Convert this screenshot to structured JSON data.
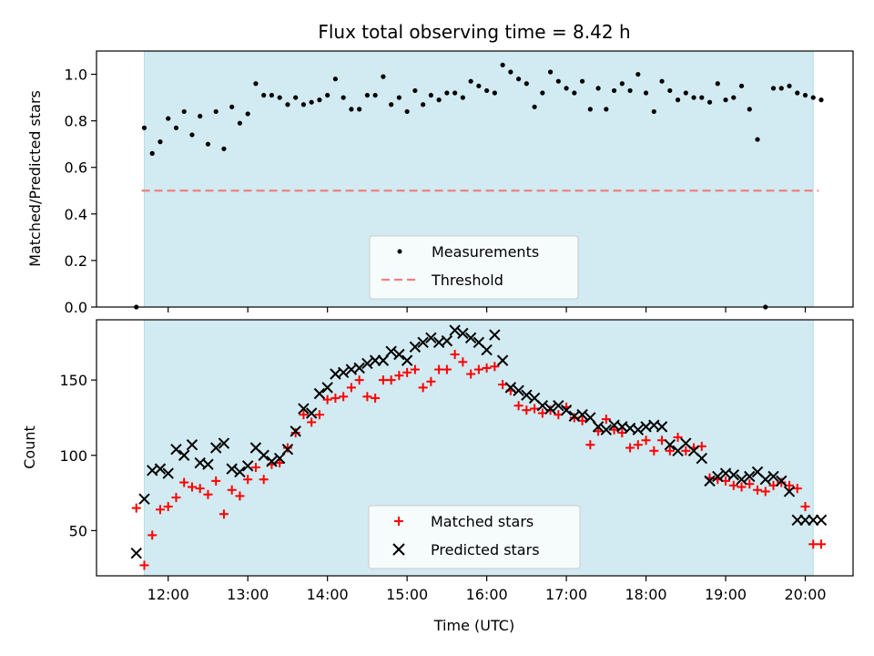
{
  "title": "Flux total observing time = 8.42 h",
  "colors": {
    "shade": "#add8e6",
    "threshold": "#f08080",
    "matched": "#ff0000",
    "predicted": "#000000",
    "measure": "#000000"
  },
  "chart_data": [
    {
      "type": "scatter",
      "ylabel": "Matched/Predicted stars",
      "ylim": [
        0.0,
        1.1
      ],
      "yticks": [
        0.0,
        0.2,
        0.4,
        0.6,
        0.8,
        1.0
      ],
      "ytick_labels": [
        "0.0",
        "0.2",
        "0.4",
        "0.6",
        "0.8",
        "1.0"
      ],
      "shaded_span": [
        "11:42",
        "20:06"
      ],
      "threshold": 0.5,
      "threshold_range": [
        "11:40",
        "20:10"
      ],
      "legend_position": "lower center",
      "series": [
        {
          "name": "Measurements",
          "marker": "dot",
          "x": [
            "11:36",
            "11:42",
            "11:48",
            "11:54",
            "12:00",
            "12:06",
            "12:12",
            "12:18",
            "12:24",
            "12:30",
            "12:36",
            "12:42",
            "12:48",
            "12:54",
            "13:00",
            "13:06",
            "13:12",
            "13:18",
            "13:24",
            "13:30",
            "13:36",
            "13:42",
            "13:48",
            "13:54",
            "14:00",
            "14:06",
            "14:12",
            "14:18",
            "14:24",
            "14:30",
            "14:36",
            "14:42",
            "14:48",
            "14:54",
            "15:00",
            "15:06",
            "15:12",
            "15:18",
            "15:24",
            "15:30",
            "15:36",
            "15:42",
            "15:48",
            "15:54",
            "16:00",
            "16:06",
            "16:12",
            "16:18",
            "16:24",
            "16:30",
            "16:36",
            "16:42",
            "16:48",
            "16:54",
            "17:00",
            "17:06",
            "17:12",
            "17:18",
            "17:24",
            "17:30",
            "17:36",
            "17:42",
            "17:48",
            "17:54",
            "18:00",
            "18:06",
            "18:12",
            "18:18",
            "18:24",
            "18:30",
            "18:36",
            "18:42",
            "18:48",
            "18:54",
            "19:00",
            "19:06",
            "19:12",
            "19:18",
            "19:24",
            "19:30",
            "19:36",
            "19:42",
            "19:48",
            "19:54",
            "20:00",
            "20:06",
            "20:12"
          ],
          "y": [
            0.0,
            0.77,
            0.66,
            0.71,
            0.81,
            0.77,
            0.84,
            0.74,
            0.82,
            0.7,
            0.84,
            0.68,
            0.86,
            0.79,
            0.83,
            0.96,
            0.91,
            0.91,
            0.9,
            0.87,
            0.9,
            0.87,
            0.88,
            0.89,
            0.91,
            0.98,
            0.9,
            0.85,
            0.85,
            0.91,
            0.91,
            0.99,
            0.87,
            0.9,
            0.84,
            0.93,
            0.87,
            0.91,
            0.89,
            0.92,
            0.92,
            0.9,
            0.97,
            0.95,
            0.93,
            0.92,
            1.04,
            1.01,
            0.98,
            0.96,
            0.86,
            0.92,
            1.01,
            0.97,
            0.94,
            0.92,
            0.97,
            0.85,
            0.94,
            0.85,
            0.93,
            0.96,
            0.93,
            1.0,
            0.92,
            0.84,
            0.97,
            0.93,
            0.89,
            0.92,
            0.9,
            0.9,
            0.88,
            0.96,
            0.89,
            0.9,
            0.95,
            0.85,
            0.72,
            0.0,
            0.94,
            0.94,
            0.95,
            0.92,
            0.91,
            0.9,
            0.89
          ]
        },
        {
          "name": "Threshold",
          "marker": "dashed-line"
        }
      ]
    },
    {
      "type": "scatter",
      "xlabel": "Time (UTC)",
      "ylabel": "Count",
      "ylim": [
        20,
        190
      ],
      "yticks": [
        50,
        100,
        150
      ],
      "ytick_labels": [
        "50",
        "100",
        "150"
      ],
      "xlim": [
        "11:06",
        "20:36"
      ],
      "xticks": [
        "12:00",
        "13:00",
        "14:00",
        "15:00",
        "16:00",
        "17:00",
        "18:00",
        "19:00",
        "20:00"
      ],
      "xtick_labels": [
        "12:00",
        "13:00",
        "14:00",
        "15:00",
        "16:00",
        "17:00",
        "18:00",
        "19:00",
        "20:00"
      ],
      "shaded_span": [
        "11:42",
        "20:06"
      ],
      "legend_position": "lower center",
      "series": [
        {
          "name": "Matched stars",
          "marker": "plus",
          "x": [
            "11:36",
            "11:42",
            "11:48",
            "11:54",
            "12:00",
            "12:06",
            "12:12",
            "12:18",
            "12:24",
            "12:30",
            "12:36",
            "12:42",
            "12:48",
            "12:54",
            "13:00",
            "13:06",
            "13:12",
            "13:18",
            "13:24",
            "13:30",
            "13:36",
            "13:42",
            "13:48",
            "13:54",
            "14:00",
            "14:06",
            "14:12",
            "14:18",
            "14:24",
            "14:30",
            "14:36",
            "14:42",
            "14:48",
            "14:54",
            "15:00",
            "15:06",
            "15:12",
            "15:18",
            "15:24",
            "15:30",
            "15:36",
            "15:42",
            "15:48",
            "15:54",
            "16:00",
            "16:06",
            "16:12",
            "16:18",
            "16:24",
            "16:30",
            "16:36",
            "16:42",
            "16:48",
            "16:54",
            "17:00",
            "17:06",
            "17:12",
            "17:18",
            "17:24",
            "17:30",
            "17:36",
            "17:42",
            "17:48",
            "17:54",
            "18:00",
            "18:06",
            "18:12",
            "18:18",
            "18:24",
            "18:30",
            "18:36",
            "18:42",
            "18:48",
            "18:54",
            "19:00",
            "19:06",
            "19:12",
            "19:18",
            "19:24",
            "19:30",
            "19:36",
            "19:42",
            "19:48",
            "19:54",
            "20:00",
            "20:06",
            "20:12"
          ],
          "y": [
            65,
            27,
            47,
            64,
            66,
            72,
            82,
            79,
            78,
            74,
            83,
            61,
            77,
            73,
            84,
            92,
            84,
            94,
            95,
            105,
            115,
            127,
            122,
            127,
            137,
            138,
            139,
            145,
            150,
            139,
            138,
            150,
            150,
            153,
            155,
            157,
            145,
            149,
            157,
            157,
            167,
            162,
            154,
            157,
            158,
            159,
            147,
            143,
            133,
            130,
            131,
            128,
            130,
            127,
            132,
            125,
            123,
            107,
            116,
            124,
            117,
            115,
            105,
            107,
            110,
            103,
            110,
            103,
            112,
            103,
            105,
            106,
            85,
            84,
            83,
            80,
            79,
            81,
            77,
            76,
            80,
            82,
            80,
            78,
            66,
            41,
            41
          ]
        },
        {
          "name": "Predicted stars",
          "marker": "x",
          "x": [
            "11:36",
            "11:42",
            "11:48",
            "11:54",
            "12:00",
            "12:06",
            "12:12",
            "12:18",
            "12:24",
            "12:30",
            "12:36",
            "12:42",
            "12:48",
            "12:54",
            "13:00",
            "13:06",
            "13:12",
            "13:18",
            "13:24",
            "13:30",
            "13:36",
            "13:42",
            "13:48",
            "13:54",
            "14:00",
            "14:06",
            "14:12",
            "14:18",
            "14:24",
            "14:30",
            "14:36",
            "14:42",
            "14:48",
            "14:54",
            "15:00",
            "15:06",
            "15:12",
            "15:18",
            "15:24",
            "15:30",
            "15:36",
            "15:42",
            "15:48",
            "15:54",
            "16:00",
            "16:06",
            "16:12",
            "16:18",
            "16:24",
            "16:30",
            "16:36",
            "16:42",
            "16:48",
            "16:54",
            "17:00",
            "17:06",
            "17:12",
            "17:18",
            "17:24",
            "17:30",
            "17:36",
            "17:42",
            "17:48",
            "17:54",
            "18:00",
            "18:06",
            "18:12",
            "18:18",
            "18:24",
            "18:30",
            "18:36",
            "18:42",
            "18:48",
            "18:54",
            "19:00",
            "19:06",
            "19:12",
            "19:18",
            "19:24",
            "19:30",
            "19:36",
            "19:42",
            "19:48",
            "19:54",
            "20:00",
            "20:06",
            "20:12"
          ],
          "y": [
            35,
            71,
            90,
            91,
            88,
            104,
            100,
            107,
            95,
            94,
            105,
            108,
            91,
            89,
            93,
            105,
            100,
            96,
            98,
            104,
            116,
            131,
            128,
            141,
            145,
            154,
            155,
            157,
            158,
            161,
            163,
            163,
            169,
            167,
            163,
            172,
            175,
            178,
            175,
            176,
            183,
            181,
            178,
            175,
            170,
            180,
            163,
            145,
            143,
            140,
            138,
            133,
            131,
            133,
            130,
            126,
            127,
            125,
            119,
            117,
            120,
            119,
            118,
            117,
            119,
            120,
            119,
            107,
            103,
            108,
            103,
            98,
            83,
            86,
            88,
            87,
            84,
            86,
            89,
            84,
            86,
            83,
            76,
            57,
            57,
            57,
            57
          ]
        }
      ]
    }
  ]
}
